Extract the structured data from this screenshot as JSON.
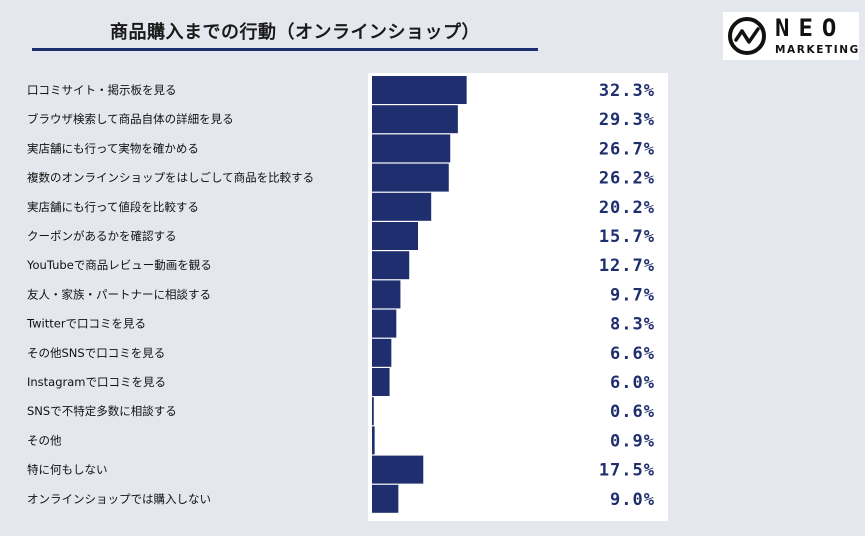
{
  "title": "商品購入までの行動（オンラインショップ）",
  "logo": {
    "word": "NEO",
    "sub": "MARKETING"
  },
  "colors": {
    "bar": "#1f2e6e",
    "panel": "#ffffff",
    "background": "#e4e7ee"
  },
  "chart_data": {
    "type": "bar",
    "orientation": "horizontal",
    "categories": [
      "口コミサイト・掲示板を見る",
      "ブラウザ検索して商品自体の詳細を見る",
      "実店舗にも行って実物を確かめる",
      "複数のオンラインショップをはしごして商品を比較する",
      "実店舗にも行って値段を比較する",
      "クーポンがあるかを確認する",
      "YouTubeで商品レビュー動画を観る",
      "友人・家族・パートナーに相談する",
      "Twitterで口コミを見る",
      "その他SNSで口コミを見る",
      "Instagramで口コミを見る",
      "SNSで不特定多数に相談する",
      "その他",
      "特に何もしない",
      "オンラインショップでは購入しない"
    ],
    "values": [
      32.3,
      29.3,
      26.7,
      26.2,
      20.2,
      15.7,
      12.7,
      9.7,
      8.3,
      6.6,
      6.0,
      0.6,
      0.9,
      17.5,
      9.0
    ],
    "value_labels": [
      "32.3%",
      "29.3%",
      "26.7%",
      "26.2%",
      "20.2%",
      "15.7%",
      "12.7%",
      "9.7%",
      "8.3%",
      "6.6%",
      "6.0%",
      "0.6%",
      "0.9%",
      "17.5%",
      "9.0%"
    ],
    "unit": "%",
    "xlim": [
      0,
      100
    ],
    "grid": false,
    "legend": "none"
  }
}
